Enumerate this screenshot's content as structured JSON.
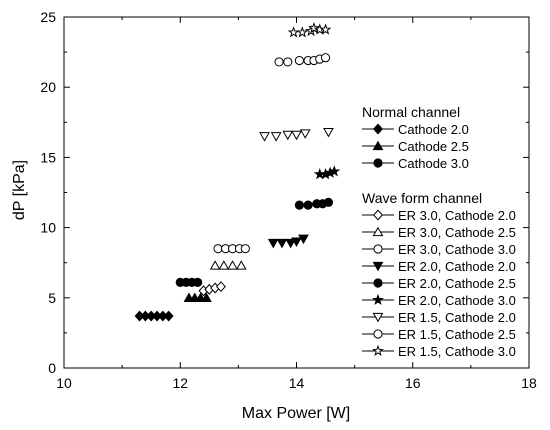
{
  "chart_data": {
    "type": "scatter",
    "title": "",
    "xlabel": "Max Power [W]",
    "ylabel": "dP [kPa]",
    "xlim": [
      10,
      18
    ],
    "ylim": [
      0,
      25
    ],
    "x_ticks": [
      10,
      12,
      14,
      16,
      18
    ],
    "y_ticks": [
      0,
      5,
      10,
      15,
      20,
      25
    ],
    "grid": false,
    "legend_position": "right",
    "legend_groups": [
      {
        "title": "Normal channel",
        "entries": [
          {
            "name": "Cathode 2.0",
            "marker": "diamond",
            "filled": true
          },
          {
            "name": "Cathode 2.5",
            "marker": "triangle-up",
            "filled": true
          },
          {
            "name": "Cathode 3.0",
            "marker": "circle",
            "filled": true
          }
        ]
      },
      {
        "title": "Wave form channel",
        "entries": [
          {
            "name": "ER 3.0, Cathode 2.0",
            "marker": "diamond",
            "filled": false
          },
          {
            "name": "ER 3.0, Cathode 2.5",
            "marker": "triangle-up",
            "filled": false
          },
          {
            "name": "ER 3.0, Cathode 3.0",
            "marker": "circle",
            "filled": false
          },
          {
            "name": "ER 2.0, Cathode 2.0",
            "marker": "triangle-down",
            "filled": true
          },
          {
            "name": "ER 2.0, Cathode 2.5",
            "marker": "circle",
            "filled": true
          },
          {
            "name": "ER 2.0, Cathode 3.0",
            "marker": "star",
            "filled": true
          },
          {
            "name": "ER 1.5, Cathode 2.0",
            "marker": "triangle-down",
            "filled": false
          },
          {
            "name": "ER 1.5, Cathode 2.5",
            "marker": "circle",
            "filled": false
          },
          {
            "name": "ER 1.5, Cathode 3.0",
            "marker": "star",
            "filled": false
          }
        ]
      }
    ],
    "series": [
      {
        "name": "Cathode 2.0",
        "marker": "diamond",
        "filled": true,
        "points": [
          [
            11.3,
            3.7
          ],
          [
            11.4,
            3.7
          ],
          [
            11.5,
            3.7
          ],
          [
            11.6,
            3.7
          ],
          [
            11.7,
            3.7
          ],
          [
            11.8,
            3.7
          ]
        ]
      },
      {
        "name": "Cathode 2.5",
        "marker": "triangle-up",
        "filled": true,
        "points": [
          [
            12.15,
            5.0
          ],
          [
            12.25,
            5.0
          ],
          [
            12.35,
            5.0
          ],
          [
            12.45,
            5.0
          ]
        ]
      },
      {
        "name": "Cathode 3.0",
        "marker": "circle",
        "filled": true,
        "points": [
          [
            12.0,
            6.1
          ],
          [
            12.1,
            6.1
          ],
          [
            12.2,
            6.1
          ],
          [
            12.3,
            6.1
          ]
        ]
      },
      {
        "name": "ER 3.0, Cathode 2.0",
        "marker": "diamond",
        "filled": false,
        "points": [
          [
            12.4,
            5.5
          ],
          [
            12.5,
            5.6
          ],
          [
            12.6,
            5.7
          ],
          [
            12.7,
            5.8
          ]
        ]
      },
      {
        "name": "ER 3.0, Cathode 2.5",
        "marker": "triangle-up",
        "filled": false,
        "points": [
          [
            12.6,
            7.3
          ],
          [
            12.75,
            7.3
          ],
          [
            12.9,
            7.3
          ],
          [
            13.05,
            7.3
          ]
        ]
      },
      {
        "name": "ER 3.0, Cathode 3.0",
        "marker": "circle",
        "filled": false,
        "points": [
          [
            12.65,
            8.5
          ],
          [
            12.78,
            8.5
          ],
          [
            12.9,
            8.5
          ],
          [
            13.02,
            8.5
          ],
          [
            13.12,
            8.5
          ]
        ]
      },
      {
        "name": "ER 2.0, Cathode 2.0",
        "marker": "triangle-down",
        "filled": true,
        "points": [
          [
            13.6,
            8.9
          ],
          [
            13.75,
            8.9
          ],
          [
            13.9,
            8.9
          ],
          [
            14.0,
            9.0
          ],
          [
            14.12,
            9.2
          ]
        ]
      },
      {
        "name": "ER 2.0, Cathode 2.5",
        "marker": "circle",
        "filled": true,
        "points": [
          [
            14.05,
            11.6
          ],
          [
            14.2,
            11.6
          ],
          [
            14.35,
            11.7
          ],
          [
            14.45,
            11.7
          ],
          [
            14.55,
            11.8
          ]
        ]
      },
      {
        "name": "ER 2.0, Cathode 3.0",
        "marker": "star",
        "filled": true,
        "points": [
          [
            14.4,
            13.8
          ],
          [
            14.5,
            13.8
          ],
          [
            14.58,
            13.9
          ],
          [
            14.65,
            14.0
          ]
        ]
      },
      {
        "name": "ER 1.5, Cathode 2.0",
        "marker": "triangle-down",
        "filled": false,
        "points": [
          [
            13.45,
            16.5
          ],
          [
            13.65,
            16.5
          ],
          [
            13.85,
            16.6
          ],
          [
            14.0,
            16.6
          ],
          [
            14.15,
            16.7
          ],
          [
            14.55,
            16.8
          ]
        ]
      },
      {
        "name": "ER 1.5, Cathode 2.5",
        "marker": "circle",
        "filled": false,
        "points": [
          [
            13.7,
            21.8
          ],
          [
            13.85,
            21.8
          ],
          [
            14.05,
            21.9
          ],
          [
            14.2,
            21.9
          ],
          [
            14.3,
            21.9
          ],
          [
            14.4,
            22.0
          ],
          [
            14.5,
            22.1
          ]
        ]
      },
      {
        "name": "ER 1.5, Cathode 3.0",
        "marker": "star",
        "filled": false,
        "points": [
          [
            13.95,
            23.9
          ],
          [
            14.1,
            23.9
          ],
          [
            14.25,
            24.0
          ],
          [
            14.3,
            24.2
          ],
          [
            14.4,
            24.1
          ],
          [
            14.5,
            24.1
          ]
        ]
      }
    ]
  }
}
